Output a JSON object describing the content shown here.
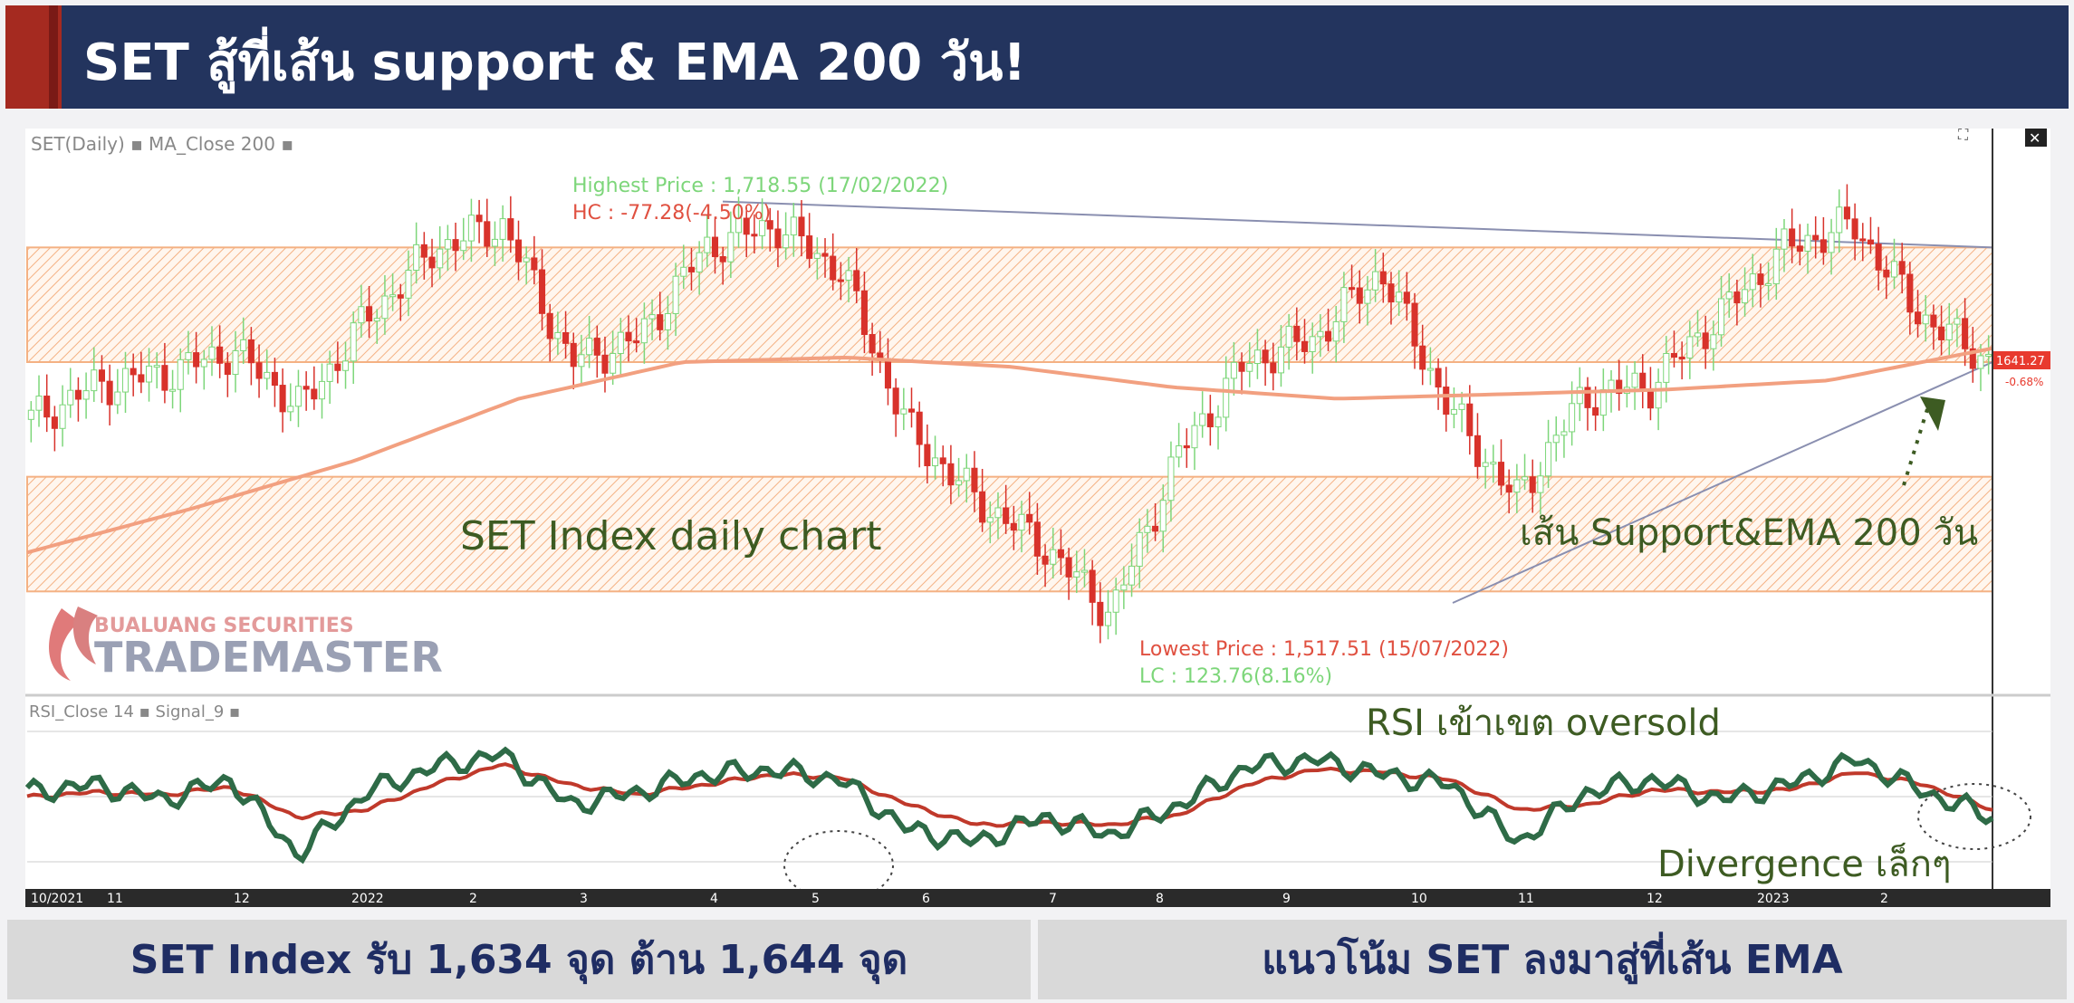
{
  "header": {
    "title": "SET สู้ที่เส้น support & EMA 200 วัน!"
  },
  "chart_data": {
    "type": "candlestick",
    "price_panel": {
      "legend": "SET(Daily) ▪ MA_Close 200 ▪",
      "highest_label": "Highest Price : 1,718.55 (17/02/2022)",
      "hc_label": "HC : -77.28(-4.50%)",
      "lowest_label": "Lowest Price : 1,517.51 (15/07/2022)",
      "lc_label": "LC : 123.76(8.16%)",
      "last_price": "1641.27",
      "last_change": "-0.68%",
      "annotation_left": "SET Index daily chart",
      "annotation_right": "เส้น Support&EMA 200 วัน",
      "highest_price": 1718.55,
      "lowest_price": 1517.51,
      "upper_zone": [
        1640,
        1690
      ],
      "lower_zone": [
        1540,
        1590
      ],
      "support_trend": {
        "from": [
          "2022-10-20",
          1535
        ],
        "to": [
          "2023-02-28",
          1640
        ]
      },
      "resistance_trend": {
        "from": [
          "2022-03-01",
          1710
        ],
        "to": [
          "2023-02-28",
          1690
        ]
      },
      "ema200_points": [
        1557,
        1576,
        1597,
        1624,
        1640,
        1642,
        1638,
        1629,
        1624,
        1626,
        1628,
        1632,
        1646
      ],
      "closes": [
        1615,
        1630,
        1635,
        1645,
        1620,
        1660,
        1690,
        1700,
        1640,
        1650,
        1690,
        1700,
        1680,
        1610,
        1580,
        1560,
        1530,
        1600,
        1640,
        1650,
        1680,
        1620,
        1580,
        1625,
        1630,
        1660,
        1690,
        1700,
        1660,
        1641
      ]
    },
    "rsi_panel": {
      "legend": "RSI_Close 14 ▪ Signal_9 ▪",
      "annotation_top": "RSI เข้าเขต oversold",
      "annotation_bottom": "Divergence เล็กๆ",
      "rsi": [
        55,
        58,
        52,
        60,
        30,
        55,
        65,
        70,
        50,
        55,
        62,
        64,
        60,
        40,
        35,
        45,
        38,
        50,
        65,
        68,
        62,
        58,
        35,
        55,
        60,
        52,
        58,
        68,
        55,
        45
      ],
      "signal": [
        53,
        55,
        54,
        57,
        45,
        48,
        58,
        66,
        58,
        54,
        58,
        62,
        61,
        50,
        42,
        43,
        42,
        46,
        58,
        64,
        63,
        60,
        48,
        50,
        56,
        55,
        56,
        63,
        58,
        48
      ]
    },
    "x_tick_labels": [
      "10/2021",
      "11",
      "12",
      "2022",
      "2",
      "3",
      "4",
      "5",
      "6",
      "7",
      "8",
      "9",
      "10",
      "11",
      "12",
      "2023",
      "2"
    ]
  },
  "footer": {
    "left": "SET Index รับ 1,634 จุด ต้าน 1,644 จุด",
    "right": "แนวโน้ม SET ลงมาสู่ที่เส้น EMA"
  },
  "logo": {
    "company": "BUALUANG SECURITIES",
    "product": "TRADEMASTER"
  },
  "colors": {
    "header_bg": "#23345e",
    "accent": "#a52a20",
    "bull": "#7dd67a",
    "bear": "#d8322b",
    "ema": "#f2a080",
    "zone": "#f4b183",
    "rsi": "#2e6b47",
    "signal": "#c0392b",
    "footer_text": "#1f2d63"
  }
}
